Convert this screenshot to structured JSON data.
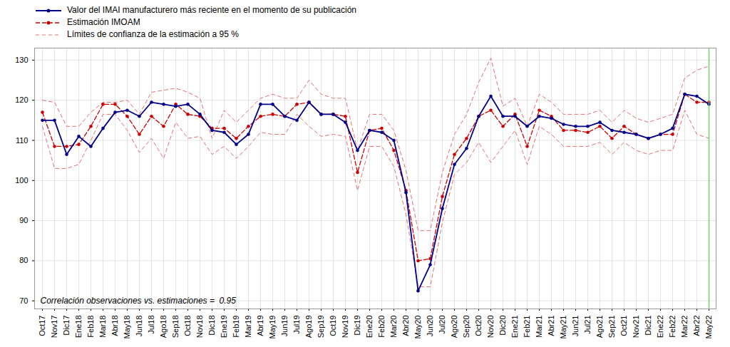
{
  "chart_data": {
    "type": "line",
    "categories": [
      "Oct17",
      "Nov17",
      "Dic17",
      "Ene18",
      "Feb18",
      "Mar18",
      "Abr18",
      "May18",
      "Jun18",
      "Jul18",
      "Ago18",
      "Sep18",
      "Oct18",
      "Nov18",
      "Dic18",
      "Ene19",
      "Feb19",
      "Mar19",
      "Abr19",
      "May19",
      "Jun19",
      "Jul19",
      "Ago19",
      "Sep19",
      "Oct19",
      "Nov19",
      "Dic19",
      "Ene20",
      "Feb20",
      "Mar20",
      "Abr20",
      "May20",
      "Jun20",
      "Jul20",
      "Ago20",
      "Sep20",
      "Oct20",
      "Nov20",
      "Dic20",
      "Ene21",
      "Feb21",
      "Mar21",
      "Abr21",
      "May21",
      "Jun21",
      "Jul21",
      "Ago21",
      "Sep21",
      "Oct21",
      "Nov21",
      "Dic21",
      "Ene22",
      "Feb22",
      "Mar22",
      "Abr22",
      "May22"
    ],
    "series": [
      {
        "name": "Valor del IMAI manufacturero más reciente en el momento de su publicación",
        "color": "#00008B",
        "line_style": "solid",
        "marker": "circle",
        "values": [
          115.0,
          115.0,
          106.5,
          111.0,
          108.5,
          113.0,
          117.0,
          117.5,
          116.0,
          119.5,
          119.0,
          118.5,
          119.0,
          116.5,
          112.5,
          112.0,
          109.0,
          111.5,
          119.0,
          119.0,
          116.0,
          115.0,
          119.5,
          116.5,
          116.5,
          114.5,
          107.5,
          112.5,
          112.0,
          110.0,
          97.0,
          72.5,
          79.0,
          93.0,
          104.0,
          108.0,
          116.0,
          121.0,
          116.0,
          116.0,
          113.5,
          116.0,
          115.5,
          114.0,
          113.5,
          113.5,
          114.5,
          112.5,
          112.0,
          111.5,
          110.5,
          111.5,
          113.0,
          121.5,
          121.0,
          119.0
        ]
      },
      {
        "name": "Estimación IMOAM",
        "color": "#cc0000",
        "line_style": "dashed",
        "marker": "circle",
        "values": [
          117.0,
          108.5,
          108.5,
          109.0,
          113.5,
          119.0,
          119.0,
          116.0,
          111.5,
          116.0,
          113.5,
          119.0,
          116.5,
          116.0,
          113.0,
          113.0,
          110.5,
          113.5,
          116.0,
          116.5,
          116.0,
          119.0,
          119.5,
          116.5,
          116.5,
          116.0,
          102.0,
          112.5,
          113.0,
          107.5,
          97.5,
          80.0,
          80.5,
          96.0,
          106.5,
          110.5,
          116.0,
          117.5,
          113.5,
          116.5,
          108.5,
          117.5,
          116.0,
          112.5,
          112.5,
          112.0,
          113.5,
          110.5,
          113.5,
          111.5,
          110.5,
          111.5,
          111.5,
          121.5,
          119.5,
          119.5
        ]
      },
      {
        "name": "Límites de confianza de la estimación a 95 %",
        "color": "#e87070",
        "line_style": "dashed",
        "upper": [
          120.0,
          119.5,
          113.5,
          113.5,
          117.0,
          119.5,
          119.5,
          120.0,
          116.5,
          122.0,
          122.5,
          123.0,
          122.0,
          120.5,
          110.5,
          117.5,
          114.5,
          117.5,
          120.5,
          121.5,
          120.5,
          120.5,
          125.0,
          121.5,
          120.5,
          120.5,
          107.5,
          116.5,
          116.5,
          112.5,
          102.5,
          87.5,
          87.5,
          102.0,
          111.5,
          116.5,
          124.5,
          130.5,
          118.5,
          120.5,
          113.5,
          121.5,
          119.5,
          116.5,
          116.5,
          116.5,
          117.5,
          114.5,
          117.5,
          115.5,
          114.5,
          115.5,
          116.5,
          125.5,
          127.5,
          128.5
        ],
        "lower": [
          113.5,
          103.0,
          103.0,
          104.0,
          110.0,
          116.5,
          116.5,
          112.5,
          107.0,
          110.5,
          105.5,
          114.5,
          110.5,
          111.0,
          106.5,
          108.5,
          105.5,
          108.5,
          112.0,
          111.5,
          111.5,
          116.5,
          113.5,
          111.0,
          111.5,
          111.0,
          97.5,
          108.5,
          108.5,
          103.5,
          91.5,
          73.5,
          73.5,
          89.5,
          101.5,
          104.5,
          109.5,
          104.5,
          108.5,
          112.5,
          104.0,
          113.5,
          111.5,
          108.5,
          108.5,
          108.5,
          109.5,
          106.5,
          109.5,
          107.5,
          106.5,
          107.5,
          107.5,
          117.5,
          111.5,
          110.5
        ]
      }
    ],
    "reference_lines": [
      {
        "x": "May22",
        "color": "#66cc66"
      }
    ],
    "annotations": [
      {
        "text": "Correlación observaciones vs. estimaciones =  0.95",
        "color": "#000000"
      }
    ],
    "ylim": [
      68,
      133
    ],
    "yticks": [
      70,
      80,
      90,
      100,
      110,
      120,
      130
    ],
    "grid": true,
    "legend": "upper left"
  }
}
